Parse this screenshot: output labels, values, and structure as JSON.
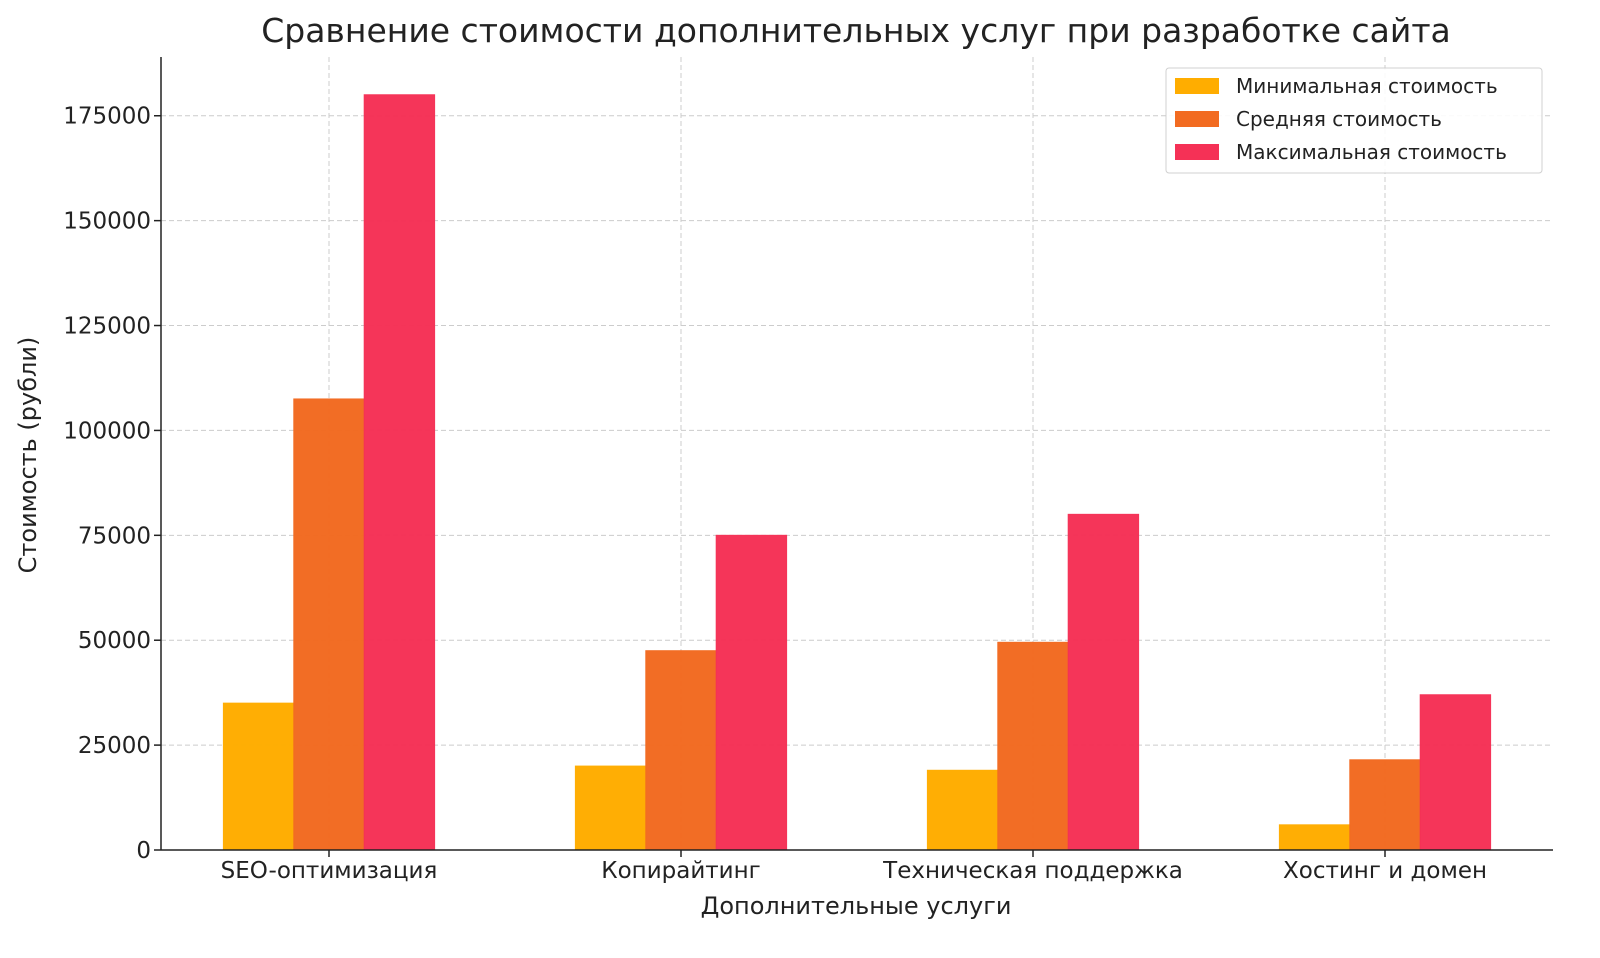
{
  "chart_data": {
    "type": "bar",
    "title": "Сравнение стоимости дополнительных услуг при разработке сайта",
    "xlabel": "Дополнительные услуги",
    "ylabel": "Стоимость (рубли)",
    "categories": [
      "SEO-оптимизация",
      "Копирайтинг",
      "Техническая поддержка",
      "Хостинг и домен"
    ],
    "series": [
      {
        "name": "Минимальная стоимость",
        "color": "#FFAD00",
        "values": [
          35000,
          20000,
          19000,
          6000
        ]
      },
      {
        "name": "Средняя стоимость",
        "color": "#F26B21",
        "values": [
          107500,
          47500,
          49500,
          21500
        ]
      },
      {
        "name": "Максимальная стоимость",
        "color": "#F53156",
        "values": [
          180000,
          75000,
          80000,
          37000
        ]
      }
    ],
    "yticks": [
      0,
      25000,
      50000,
      75000,
      100000,
      125000,
      150000,
      175000
    ],
    "ylim": [
      0,
      189000
    ],
    "grid": true,
    "legend": "top-right"
  }
}
